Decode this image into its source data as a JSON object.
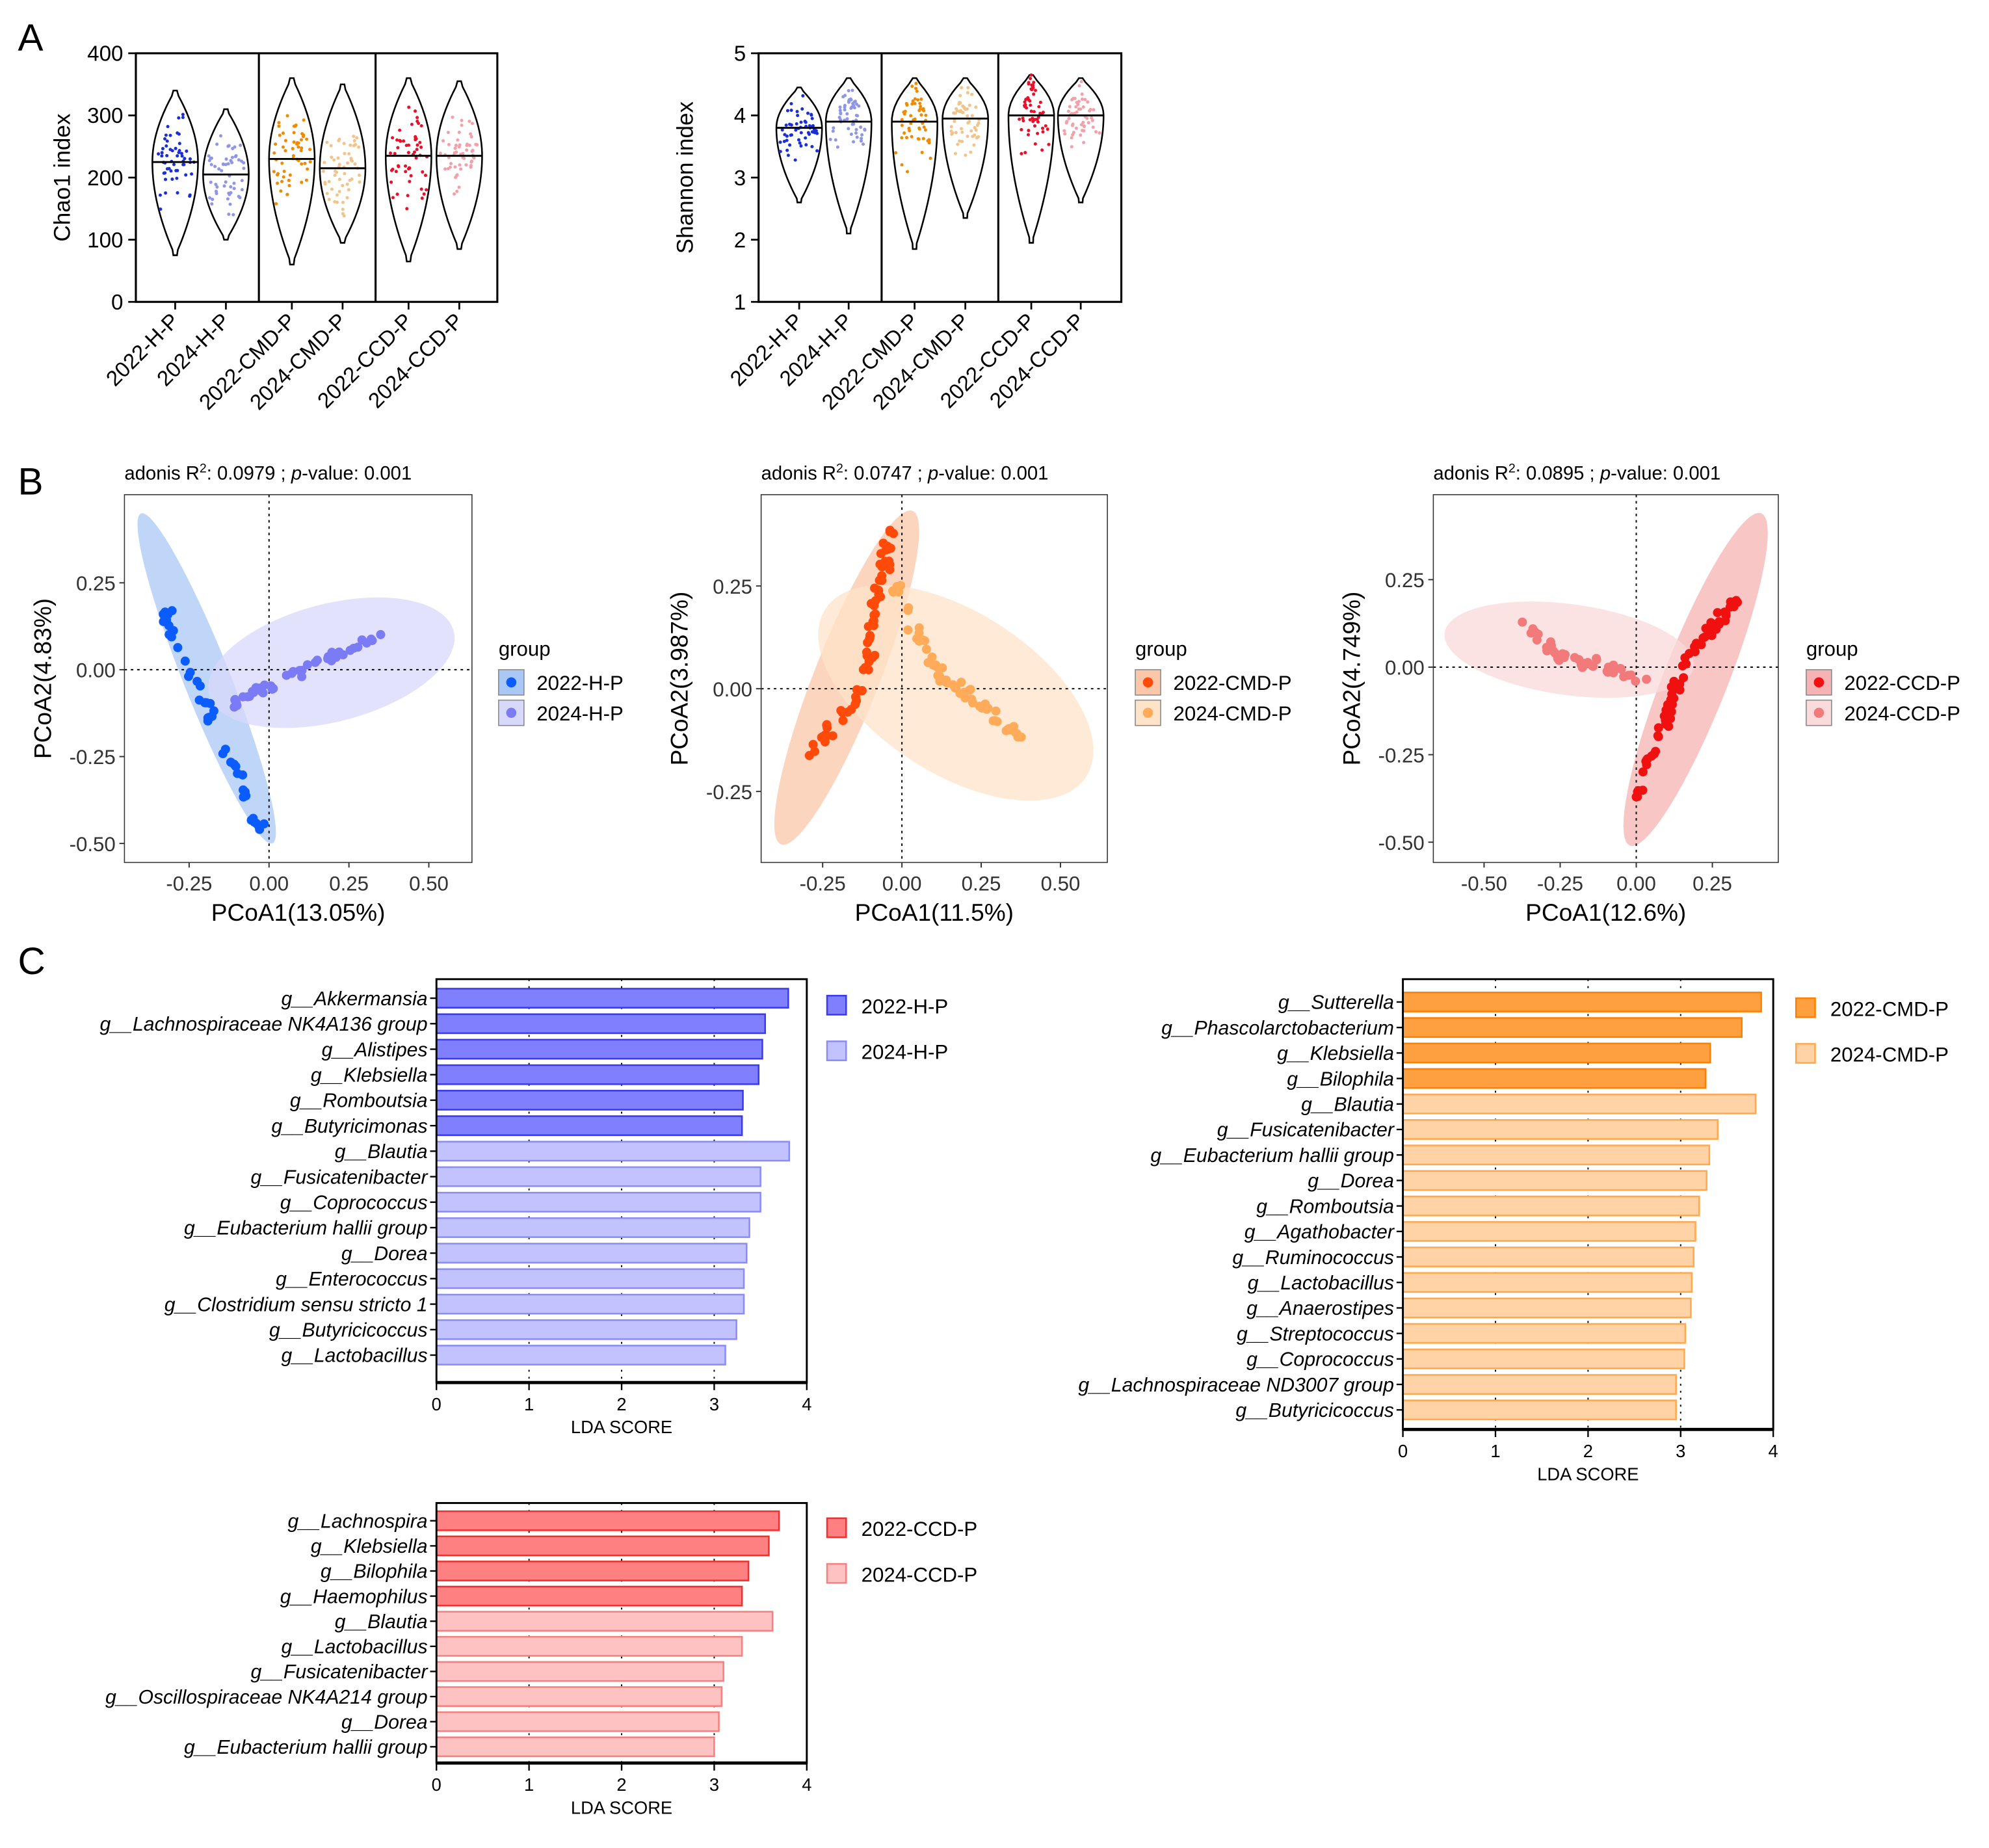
{
  "panel_labels": [
    "A",
    "B",
    "C"
  ],
  "chart_data": [
    {
      "type": "violin",
      "id": "chao1",
      "ylabel": "Chao1 index",
      "ylim": [
        0,
        400
      ],
      "yticks": [
        "0",
        "100",
        "200",
        "300",
        "400"
      ],
      "categories": [
        "2022-H-P",
        "2024-H-P",
        "2022-CMD-P",
        "2024-CMD-P",
        "2022-CCD-P",
        "2024-CCD-P"
      ],
      "median": [
        225,
        205,
        230,
        215,
        235,
        235
      ],
      "min": [
        75,
        100,
        60,
        95,
        65,
        85
      ],
      "max": [
        340,
        310,
        360,
        350,
        360,
        355
      ],
      "colors": [
        "#1a2fd6",
        "#8f96e8",
        "#f08a00",
        "#f2c48a",
        "#e8102a",
        "#f4a0a8"
      ]
    },
    {
      "type": "violin",
      "id": "shannon",
      "ylabel": "Shannon index",
      "ylim": [
        1,
        5
      ],
      "yticks": [
        "1",
        "2",
        "3",
        "4",
        "5"
      ],
      "categories": [
        "2022-H-P",
        "2024-H-P",
        "2022-CMD-P",
        "2024-CMD-P",
        "2022-CCD-P",
        "2024-CCD-P"
      ],
      "median": [
        3.8,
        3.9,
        3.9,
        3.95,
        4.0,
        4.0
      ],
      "min": [
        2.6,
        2.1,
        1.85,
        2.35,
        1.95,
        2.6
      ],
      "max": [
        4.45,
        4.6,
        4.6,
        4.6,
        4.65,
        4.6
      ],
      "colors": [
        "#1a2fd6",
        "#8f96e8",
        "#f08a00",
        "#f2c48a",
        "#e8102a",
        "#f4a0a8"
      ]
    },
    {
      "type": "scatter",
      "id": "pcoa-h",
      "title_prefix": "adonis R",
      "title_r2": ": 0.0979 ; ",
      "title_p": "p",
      "title_rest": "-value:  0.001",
      "xlabel": "PCoA1(13.05%)",
      "ylabel": "PCoA2(4.83%)",
      "xticks": [
        "-0.25",
        "0.00",
        "0.25",
        "0.50"
      ],
      "yticks": [
        "0.25",
        "0.00",
        "-0.25",
        "-0.50"
      ],
      "legend_title": "group",
      "legend": [
        "2022-H-P",
        "2024-H-P"
      ],
      "groups": [
        {
          "name": "2022-H-P",
          "color": "#0a5cff",
          "from": [
            -0.33,
            0.17
          ],
          "to": [
            -0.02,
            -0.47
          ],
          "n": 45,
          "ellipse": {
            "c": [
              -0.195,
              -0.025
            ],
            "a": [
              0.205,
              -0.475
            ],
            "b": [
              0.07,
              0.02
            ]
          },
          "fill": "#a9c8f5"
        },
        {
          "name": "2024-H-P",
          "color": "#7b7bf5",
          "from": [
            -0.12,
            -0.1
          ],
          "to": [
            0.35,
            0.1
          ],
          "n": 45,
          "ellipse": {
            "c": [
              0.195,
              0.02
            ],
            "a": [
              0.385,
              0.08
            ],
            "b": [
              -0.02,
              0.17
            ]
          },
          "fill": "#d8d8fb"
        }
      ]
    },
    {
      "type": "scatter",
      "id": "pcoa-cmd",
      "title_prefix": "adonis R",
      "title_r2": ": 0.0747 ; ",
      "title_p": "p",
      "title_rest": "-value:  0.001",
      "xlabel": "PCoA1(11.5%)",
      "ylabel": "PCoA2(3.987%)",
      "xticks": [
        "-0.25",
        "0.00",
        "0.25",
        "0.50"
      ],
      "yticks": [
        "0.25",
        "0.00",
        "-0.25"
      ],
      "legend_title": "group",
      "legend": [
        "2022-CMD-P",
        "2024-CMD-P"
      ],
      "groups": [
        {
          "name": "2022-CMD-P",
          "color": "#ff4a0a",
          "path": [
            [
              -0.3,
              -0.17
            ],
            [
              -0.12,
              0.0
            ],
            [
              -0.08,
              0.22
            ],
            [
              -0.03,
              0.4
            ]
          ],
          "n": 70,
          "ellipse": {
            "c": [
              -0.174,
              0.027
            ],
            "a": [
              0.21,
              0.405
            ],
            "b": [
              0.09,
              -0.04
            ]
          },
          "fill": "#fbc7a8"
        },
        {
          "name": "2024-CMD-P",
          "color": "#ffab5a",
          "path": [
            [
              -0.02,
              0.25
            ],
            [
              0.1,
              0.05
            ],
            [
              0.25,
              -0.04
            ],
            [
              0.37,
              -0.12
            ]
          ],
          "n": 60,
          "ellipse": {
            "c": [
              0.17,
              -0.01
            ],
            "a": [
              0.43,
              -0.17
            ],
            "b": [
              0.06,
              0.2
            ]
          },
          "fill": "#fde3c8"
        }
      ]
    },
    {
      "type": "scatter",
      "id": "pcoa-ccd",
      "title_prefix": "adonis R",
      "title_r2": ": 0.0895 ; ",
      "title_p": "p",
      "title_rest": "-value:  0.001",
      "xlabel": "PCoA1(12.6%)",
      "ylabel": "PCoA2(4.749%)",
      "xticks": [
        "-0.50",
        "-0.25",
        "0.00",
        "0.25"
      ],
      "yticks": [
        "0.25",
        "0.00",
        "-0.25",
        "-0.50"
      ],
      "legend_title": "group",
      "legend": [
        "2022-CCD-P",
        "2024-CCD-P"
      ],
      "groups": [
        {
          "name": "2022-CCD-P",
          "color": "#f01010",
          "path": [
            [
              0.0,
              -0.38
            ],
            [
              0.1,
              -0.15
            ],
            [
              0.15,
              0.0
            ],
            [
              0.33,
              0.2
            ]
          ],
          "n": 70,
          "ellipse": {
            "c": [
              0.195,
              -0.035
            ],
            "a": [
              0.215,
              0.475
            ],
            "b": [
              0.1,
              -0.03
            ]
          },
          "fill": "#f7b3b3"
        },
        {
          "name": "2024-CCD-P",
          "color": "#f27a7a",
          "path": [
            [
              -0.38,
              0.13
            ],
            [
              -0.25,
              0.03
            ],
            [
              -0.1,
              0.0
            ],
            [
              0.03,
              -0.03
            ]
          ],
          "n": 45,
          "ellipse": {
            "c": [
              -0.22,
              0.05
            ],
            "a": [
              0.41,
              -0.045
            ],
            "b": [
              0.01,
              0.13
            ]
          },
          "fill": "#fadada"
        }
      ]
    },
    {
      "type": "bar",
      "id": "lda-h",
      "orientation": "horizontal",
      "xlabel": "LDA SCORE",
      "xlim": [
        0,
        4
      ],
      "xticks": [
        "0",
        "1",
        "2",
        "3",
        "4"
      ],
      "legend": [
        "2022-H-P",
        "2024-H-P"
      ],
      "colors": [
        [
          "#8080ff",
          "#3a3aee"
        ],
        [
          "#c2c2ff",
          "#8c8cf5"
        ]
      ],
      "categories": [
        "g__Akkermansia",
        "g__Lachnospiraceae NK4A136 group",
        "g__Alistipes",
        "g__Klebsiella",
        "g__Romboutsia",
        "g__Butyricimonas",
        "g__Blautia",
        "g__Fusicatenibacter",
        "g__Coprococcus",
        "g__Eubacterium hallii group",
        "g__Dorea",
        "g__Enterococcus",
        "g__Clostridium sensu stricto 1",
        "g__Butyricicoccus",
        "g__Lactobacillus"
      ],
      "values": [
        3.8,
        3.55,
        3.52,
        3.48,
        3.31,
        3.3,
        3.81,
        3.5,
        3.5,
        3.38,
        3.35,
        3.32,
        3.32,
        3.24,
        3.12
      ],
      "group": [
        0,
        0,
        0,
        0,
        0,
        0,
        1,
        1,
        1,
        1,
        1,
        1,
        1,
        1,
        1
      ]
    },
    {
      "type": "bar",
      "id": "lda-cmd",
      "orientation": "horizontal",
      "xlabel": "LDA SCORE",
      "xlim": [
        0,
        4
      ],
      "xticks": [
        "0",
        "1",
        "2",
        "3",
        "4"
      ],
      "legend": [
        "2022-CMD-P",
        "2024-CMD-P"
      ],
      "colors": [
        [
          "#ffa040",
          "#ff8000"
        ],
        [
          "#ffd3a5",
          "#ffa850"
        ]
      ],
      "categories": [
        "g__Sutterella",
        "g__Phascolarctobacterium",
        "g__Klebsiella",
        "g__Bilophila",
        "g__Blautia",
        "g__Fusicatenibacter",
        "g__Eubacterium hallii group",
        "g__Dorea",
        "g__Romboutsia",
        "g__Agathobacter",
        "g__Ruminococcus",
        "g__Lactobacillus",
        "g__Anaerostipes",
        "g__Streptococcus",
        "g__Coprococcus",
        "g__Lachnospiraceae ND3007 group",
        "g__Butyricicoccus"
      ],
      "values": [
        3.87,
        3.66,
        3.32,
        3.27,
        3.81,
        3.4,
        3.31,
        3.28,
        3.2,
        3.16,
        3.14,
        3.12,
        3.11,
        3.05,
        3.04,
        2.95,
        2.95
      ],
      "group": [
        0,
        0,
        0,
        0,
        1,
        1,
        1,
        1,
        1,
        1,
        1,
        1,
        1,
        1,
        1,
        1,
        1
      ]
    },
    {
      "type": "bar",
      "id": "lda-ccd",
      "orientation": "horizontal",
      "xlabel": "LDA SCORE",
      "xlim": [
        0,
        4
      ],
      "xticks": [
        "0",
        "1",
        "2",
        "3",
        "4"
      ],
      "legend": [
        "2022-CCD-P",
        "2024-CCD-P"
      ],
      "colors": [
        [
          "#ff8080",
          "#f03030"
        ],
        [
          "#ffc2c2",
          "#f58080"
        ]
      ],
      "categories": [
        "g__Lachnospira",
        "g__Klebsiella",
        "g__Bilophila",
        "g__Haemophilus",
        "g__Blautia",
        "g__Lactobacillus",
        "g__Fusicatenibacter",
        "g__Oscillospiraceae NK4A214 group",
        "g__Dorea",
        "g__Eubacterium hallii group"
      ],
      "values": [
        3.7,
        3.59,
        3.37,
        3.3,
        3.63,
        3.3,
        3.1,
        3.08,
        3.05,
        3.0
      ],
      "group": [
        0,
        0,
        0,
        0,
        1,
        1,
        1,
        1,
        1,
        1
      ]
    }
  ]
}
